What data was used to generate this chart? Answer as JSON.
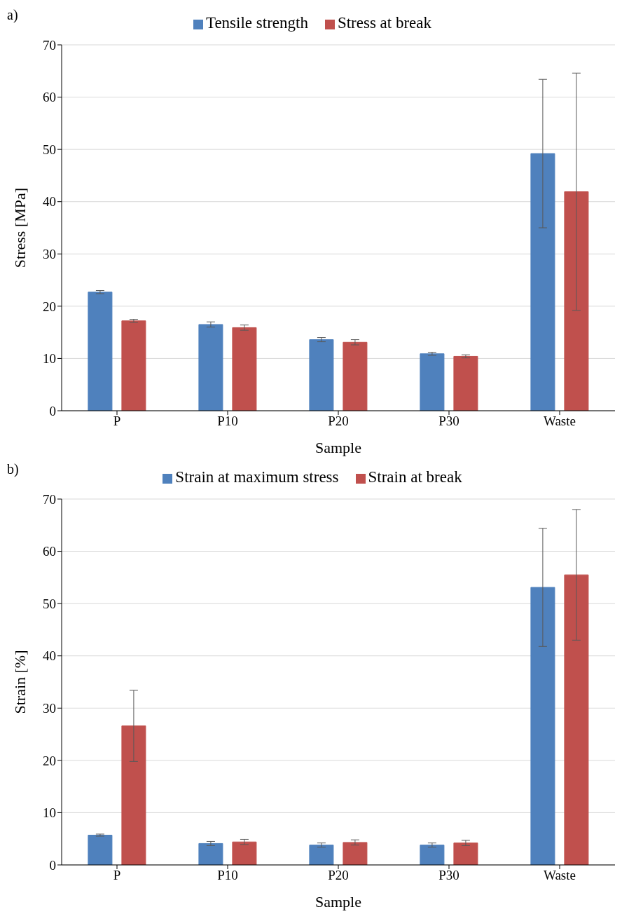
{
  "chart_data": [
    {
      "type": "bar",
      "title": "a)",
      "xlabel": "Sample",
      "ylabel": "Stress [MPa]",
      "categories": [
        "P",
        "P10",
        "P20",
        "P30",
        "Waste"
      ],
      "ylim": [
        0,
        70
      ],
      "yticks": [
        0,
        10,
        20,
        30,
        40,
        50,
        60,
        70
      ],
      "grid": "y",
      "legend": "top",
      "series": [
        {
          "name": "Tensile strength",
          "color": "#4f81bd",
          "values": [
            22.7,
            16.5,
            13.6,
            10.9,
            49.2
          ],
          "errors": [
            0.3,
            0.5,
            0.4,
            0.3,
            14.2
          ]
        },
        {
          "name": "Stress at break",
          "color": "#c0504d",
          "values": [
            17.2,
            15.9,
            13.1,
            10.4,
            41.9
          ],
          "errors": [
            0.3,
            0.5,
            0.5,
            0.3,
            22.7
          ]
        }
      ]
    },
    {
      "type": "bar",
      "title": "b)",
      "xlabel": "Sample",
      "ylabel": "Strain [%]",
      "categories": [
        "P",
        "P10",
        "P20",
        "P30",
        "Waste"
      ],
      "ylim": [
        0,
        70
      ],
      "yticks": [
        0,
        10,
        20,
        30,
        40,
        50,
        60,
        70
      ],
      "grid": "y",
      "legend": "top",
      "series": [
        {
          "name": "Strain at maximum stress",
          "color": "#4f81bd",
          "values": [
            5.7,
            4.1,
            3.8,
            3.8,
            53.1
          ],
          "errors": [
            0.2,
            0.4,
            0.4,
            0.4,
            11.3
          ]
        },
        {
          "name": "Strain at break",
          "color": "#c0504d",
          "values": [
            26.6,
            4.4,
            4.3,
            4.2,
            55.5
          ],
          "errors": [
            6.8,
            0.5,
            0.5,
            0.5,
            12.5
          ]
        }
      ]
    }
  ]
}
